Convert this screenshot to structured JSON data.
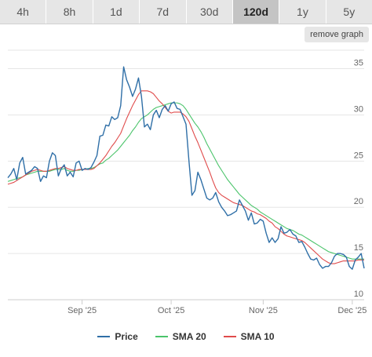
{
  "tabs": [
    {
      "label": "4h",
      "active": false
    },
    {
      "label": "8h",
      "active": false
    },
    {
      "label": "1d",
      "active": false
    },
    {
      "label": "7d",
      "active": false
    },
    {
      "label": "30d",
      "active": false
    },
    {
      "label": "120d",
      "active": true
    },
    {
      "label": "1y",
      "active": false
    },
    {
      "label": "5y",
      "active": false
    }
  ],
  "remove_graph_label": "remove graph",
  "legend": [
    {
      "label": "Price",
      "color": "#2f6fa7"
    },
    {
      "label": "SMA 20",
      "color": "#4bc46b"
    },
    {
      "label": "SMA 10",
      "color": "#e04b4b"
    }
  ],
  "chart_data": {
    "type": "line",
    "title": "",
    "xlabel": "",
    "ylabel": "",
    "ylim": [
      10,
      37
    ],
    "yticks": [
      10,
      15,
      20,
      25,
      30,
      35
    ],
    "grid": true,
    "legend_position": "bottom",
    "x_range": [
      "2025-08-07",
      "2025-12-05"
    ],
    "xticks": [
      {
        "label": "Sep '25",
        "date": "2025-09-01"
      },
      {
        "label": "Oct '25",
        "date": "2025-10-01"
      },
      {
        "label": "Nov '25",
        "date": "2025-11-01"
      },
      {
        "label": "Dec '25",
        "date": "2025-12-01"
      }
    ],
    "dates": [
      "2025-08-07",
      "2025-08-08",
      "2025-08-09",
      "2025-08-10",
      "2025-08-11",
      "2025-08-12",
      "2025-08-13",
      "2025-08-14",
      "2025-08-15",
      "2025-08-16",
      "2025-08-17",
      "2025-08-18",
      "2025-08-19",
      "2025-08-20",
      "2025-08-21",
      "2025-08-22",
      "2025-08-23",
      "2025-08-24",
      "2025-08-25",
      "2025-08-26",
      "2025-08-27",
      "2025-08-28",
      "2025-08-29",
      "2025-08-30",
      "2025-08-31",
      "2025-09-01",
      "2025-09-02",
      "2025-09-03",
      "2025-09-04",
      "2025-09-05",
      "2025-09-06",
      "2025-09-07",
      "2025-09-08",
      "2025-09-09",
      "2025-09-10",
      "2025-09-11",
      "2025-09-12",
      "2025-09-13",
      "2025-09-14",
      "2025-09-15",
      "2025-09-16",
      "2025-09-17",
      "2025-09-18",
      "2025-09-19",
      "2025-09-20",
      "2025-09-21",
      "2025-09-22",
      "2025-09-23",
      "2025-09-24",
      "2025-09-25",
      "2025-09-26",
      "2025-09-27",
      "2025-09-28",
      "2025-09-29",
      "2025-09-30",
      "2025-10-01",
      "2025-10-02",
      "2025-10-03",
      "2025-10-04",
      "2025-10-05",
      "2025-10-06",
      "2025-10-07",
      "2025-10-08",
      "2025-10-09",
      "2025-10-10",
      "2025-10-11",
      "2025-10-12",
      "2025-10-13",
      "2025-10-14",
      "2025-10-15",
      "2025-10-16",
      "2025-10-17",
      "2025-10-18",
      "2025-10-19",
      "2025-10-20",
      "2025-10-21",
      "2025-10-22",
      "2025-10-23",
      "2025-10-24",
      "2025-10-25",
      "2025-10-26",
      "2025-10-27",
      "2025-10-28",
      "2025-10-29",
      "2025-10-30",
      "2025-10-31",
      "2025-11-01",
      "2025-11-02",
      "2025-11-03",
      "2025-11-04",
      "2025-11-05",
      "2025-11-06",
      "2025-11-07",
      "2025-11-08",
      "2025-11-09",
      "2025-11-10",
      "2025-11-11",
      "2025-11-12",
      "2025-11-13",
      "2025-11-14",
      "2025-11-15",
      "2025-11-16",
      "2025-11-17",
      "2025-11-18",
      "2025-11-19",
      "2025-11-20",
      "2025-11-21",
      "2025-11-22",
      "2025-11-23",
      "2025-11-24",
      "2025-11-25",
      "2025-11-26",
      "2025-11-27",
      "2025-11-28",
      "2025-11-29",
      "2025-11-30",
      "2025-12-01",
      "2025-12-02",
      "2025-12-03",
      "2025-12-04",
      "2025-12-05"
    ],
    "series": [
      {
        "name": "Price",
        "color": "#2f6fa7",
        "values": [
          23.2,
          23.6,
          24.2,
          23.0,
          24.8,
          25.4,
          23.6,
          23.8,
          24.0,
          24.4,
          24.2,
          22.8,
          23.4,
          23.2,
          25.0,
          25.9,
          25.6,
          23.4,
          24.2,
          24.6,
          23.4,
          23.8,
          23.3,
          24.8,
          25.0,
          24.0,
          24.2,
          24.1,
          24.3,
          24.9,
          25.6,
          27.7,
          27.8,
          28.9,
          28.8,
          29.8,
          29.5,
          29.7,
          31.0,
          35.2,
          33.8,
          33.0,
          32.0,
          32.8,
          34.0,
          32.0,
          28.7,
          29.0,
          28.4,
          30.0,
          30.5,
          29.7,
          30.6,
          31.0,
          30.4,
          31.2,
          31.4,
          30.7,
          30.6,
          29.8,
          29.0,
          25.0,
          21.3,
          21.8,
          23.8,
          23.0,
          22.0,
          21.0,
          20.8,
          21.0,
          21.6,
          20.6,
          20.0,
          19.6,
          19.1,
          19.2,
          19.4,
          19.6,
          20.8,
          20.2,
          19.6,
          18.6,
          19.4,
          18.2,
          18.3,
          18.7,
          18.5,
          17.2,
          16.2,
          16.7,
          16.2,
          16.6,
          17.9,
          17.2,
          17.3,
          17.6,
          17.1,
          16.9,
          16.2,
          16.3,
          15.7,
          15.0,
          14.4,
          14.3,
          14.5,
          13.8,
          13.4,
          13.6,
          13.6,
          14.0,
          14.7,
          15.0,
          15.0,
          14.9,
          14.6,
          13.6,
          13.3,
          14.3,
          14.6,
          15.0,
          13.4
        ]
      },
      {
        "name": "SMA 20",
        "color": "#4bc46b",
        "values": [
          22.8,
          22.9,
          23.0,
          23.1,
          23.2,
          23.3,
          23.5,
          23.6,
          23.7,
          23.8,
          23.9,
          23.9,
          23.9,
          23.9,
          23.9,
          24.0,
          24.1,
          24.1,
          24.1,
          24.2,
          24.0,
          23.9,
          23.9,
          24.0,
          24.0,
          24.1,
          24.1,
          24.2,
          24.2,
          24.3,
          24.5,
          24.7,
          24.8,
          25.1,
          25.3,
          25.6,
          25.9,
          26.2,
          26.6,
          27.0,
          27.4,
          27.8,
          28.3,
          28.7,
          29.2,
          29.6,
          29.8,
          30.0,
          30.3,
          30.6,
          30.8,
          30.9,
          31.0,
          31.1,
          31.2,
          31.3,
          31.3,
          31.3,
          31.2,
          31.0,
          30.6,
          30.1,
          29.6,
          29.1,
          28.7,
          28.2,
          27.6,
          26.9,
          26.3,
          25.7,
          25.1,
          24.5,
          24.0,
          23.5,
          23.0,
          22.6,
          22.2,
          21.8,
          21.4,
          21.1,
          20.8,
          20.5,
          20.2,
          20.0,
          19.8,
          19.5,
          19.3,
          19.1,
          18.9,
          18.7,
          18.5,
          18.3,
          18.1,
          17.9,
          17.7,
          17.6,
          17.5,
          17.3,
          17.1,
          17.0,
          16.8,
          16.6,
          16.4,
          16.2,
          16.0,
          15.8,
          15.6,
          15.4,
          15.2,
          15.1,
          15.0,
          14.9,
          14.8,
          14.7,
          14.6,
          14.5,
          14.4,
          14.4,
          14.4,
          14.4,
          14.4
        ]
      },
      {
        "name": "SMA 10",
        "color": "#e04b4b",
        "values": [
          22.5,
          22.6,
          22.7,
          22.9,
          23.1,
          23.3,
          23.5,
          23.7,
          23.9,
          24.0,
          24.1,
          24.0,
          23.9,
          23.9,
          24.0,
          24.1,
          24.2,
          24.2,
          24.3,
          24.4,
          24.2,
          24.1,
          24.0,
          24.0,
          24.1,
          24.1,
          24.1,
          24.1,
          24.1,
          24.2,
          24.5,
          24.8,
          25.2,
          25.6,
          26.1,
          26.6,
          27.0,
          27.5,
          28.0,
          28.8,
          29.6,
          30.3,
          31.0,
          31.6,
          32.2,
          32.6,
          32.6,
          32.6,
          32.5,
          32.3,
          31.9,
          31.5,
          31.2,
          30.8,
          30.4,
          30.2,
          30.3,
          30.3,
          30.3,
          30.1,
          29.8,
          29.3,
          28.5,
          27.7,
          27.0,
          26.2,
          25.4,
          24.6,
          23.8,
          22.9,
          22.1,
          21.6,
          21.3,
          21.1,
          20.9,
          20.7,
          20.5,
          20.4,
          20.3,
          20.2,
          20.0,
          19.8,
          19.6,
          19.5,
          19.3,
          19.2,
          19.0,
          18.8,
          18.5,
          18.3,
          17.9,
          17.7,
          17.4,
          17.1,
          16.9,
          16.8,
          16.7,
          16.6,
          16.5,
          16.4,
          16.2,
          15.9,
          15.6,
          15.3,
          15.0,
          14.7,
          14.4,
          14.2,
          14.0,
          13.9,
          13.9,
          14.0,
          14.1,
          14.2,
          14.2,
          14.2,
          14.2,
          14.2,
          14.3,
          14.3,
          14.3
        ]
      }
    ]
  }
}
